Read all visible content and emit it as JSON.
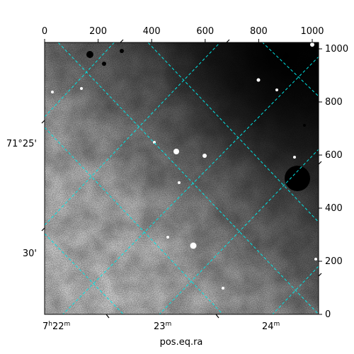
{
  "figure": {
    "x_axis_title": "pos.eq.ra",
    "pixel_axis": {
      "top_ticks": [
        "0",
        "200",
        "400",
        "600",
        "800",
        "1000"
      ],
      "right_ticks": [
        "0",
        "200",
        "400",
        "600",
        "800",
        "1000"
      ],
      "range": [
        0,
        1024
      ]
    },
    "world_ticks": {
      "ra_bottom": [
        {
          "h": "7",
          "m": "22",
          "hm": true
        },
        {
          "h": "",
          "m": "23",
          "hm": false
        },
        {
          "h": "",
          "m": "24",
          "hm": false
        }
      ],
      "dec_left": [
        "71°25'",
        "30'"
      ]
    },
    "colors": {
      "grid": "#00e5e5",
      "frame": "#000000"
    },
    "image": {
      "colormap": "gray-inverted",
      "description_level": "sky-survey-grayscale"
    }
  }
}
